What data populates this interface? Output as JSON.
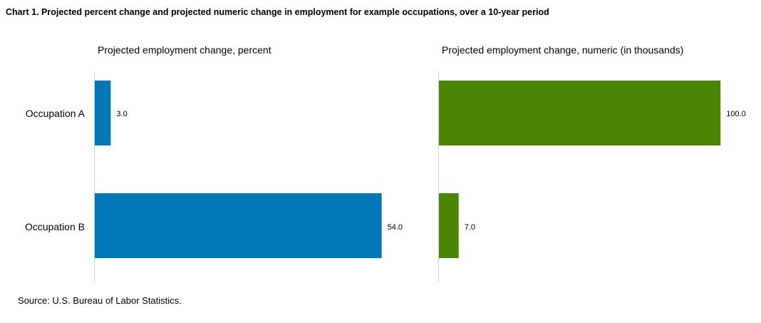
{
  "title": "Chart 1. Projected percent change and projected numeric change in employment for example occupations, over a 10-year period",
  "source": "Source: U.S. Bureau of Labor Statistics.",
  "colors": {
    "percent": "#0077b6",
    "numeric": "#4b8504",
    "axis": "#d0d0d0"
  },
  "chart_data": [
    {
      "type": "bar",
      "orientation": "horizontal",
      "title": "Projected employment change, percent",
      "categories": [
        "Occupation A",
        "Occupation B"
      ],
      "values": [
        3.0,
        54.0
      ],
      "data_labels": [
        "3.0",
        "54.0"
      ],
      "xlim": [
        0,
        57
      ],
      "grid": false
    },
    {
      "type": "bar",
      "orientation": "horizontal",
      "title": "Projected employment change, numeric (in thousands)",
      "categories": [
        "Occupation A",
        "Occupation B"
      ],
      "values": [
        100.0,
        7.0
      ],
      "data_labels": [
        "100.0",
        "7.0"
      ],
      "xlim": [
        0,
        105
      ],
      "grid": false
    }
  ]
}
